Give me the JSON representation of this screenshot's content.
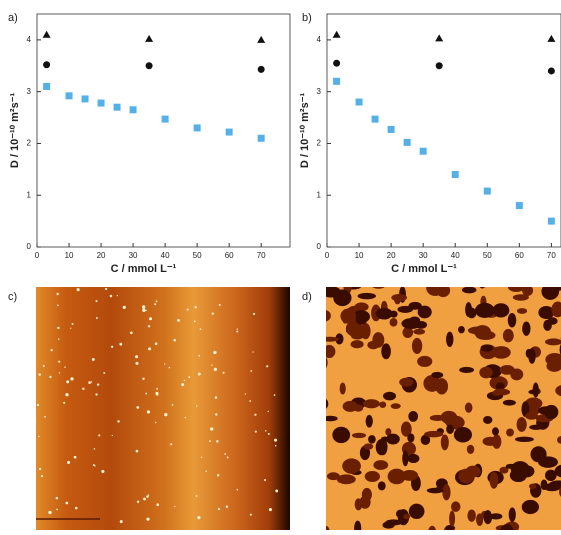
{
  "chart_data": [
    {
      "type": "scatter",
      "label": "a)",
      "xlabel": "C / mmol L⁻¹",
      "ylabel": "D / 10⁻¹⁰ m²s⁻¹",
      "xlim": [
        0,
        79
      ],
      "ylim": [
        0,
        4.5
      ],
      "xticks": [
        0,
        10,
        20,
        30,
        40,
        50,
        60,
        70
      ],
      "yticks": [
        0,
        1,
        2,
        3,
        4
      ],
      "series": [
        {
          "marker": "triangle",
          "color": "#111111",
          "x": [
            3,
            35,
            70
          ],
          "values": [
            4.1,
            4.02,
            4.0
          ]
        },
        {
          "marker": "circle",
          "color": "#111111",
          "x": [
            3,
            35,
            70
          ],
          "values": [
            3.52,
            3.5,
            3.43
          ]
        },
        {
          "marker": "square",
          "color": "#55b0e8",
          "x": [
            3,
            10,
            15,
            20,
            25,
            30,
            40,
            50,
            60,
            70
          ],
          "values": [
            3.1,
            2.92,
            2.86,
            2.78,
            2.7,
            2.65,
            2.47,
            2.3,
            2.22,
            2.1
          ]
        }
      ]
    },
    {
      "type": "scatter",
      "label": "b)",
      "xlabel": "C / mmol L⁻¹",
      "ylabel": "D / 10⁻¹⁰ m²s⁻¹",
      "xlim": [
        0,
        73
      ],
      "ylim": [
        0,
        4.5
      ],
      "xticks": [
        0,
        10,
        20,
        30,
        40,
        50,
        60,
        70
      ],
      "yticks": [
        0,
        1,
        2,
        3,
        4
      ],
      "series": [
        {
          "marker": "triangle",
          "color": "#111111",
          "x": [
            3,
            35,
            70
          ],
          "values": [
            4.1,
            4.03,
            4.02
          ]
        },
        {
          "marker": "circle",
          "color": "#111111",
          "x": [
            3,
            35,
            70
          ],
          "values": [
            3.55,
            3.5,
            3.4
          ]
        },
        {
          "marker": "square",
          "color": "#55b0e8",
          "x": [
            3,
            10,
            15,
            20,
            25,
            30,
            40,
            50,
            60,
            70
          ],
          "values": [
            3.2,
            2.8,
            2.47,
            2.27,
            2.02,
            1.85,
            1.4,
            1.08,
            0.8,
            0.5
          ]
        }
      ]
    }
  ],
  "images": [
    {
      "label": "c)"
    },
    {
      "label": "d)"
    }
  ]
}
